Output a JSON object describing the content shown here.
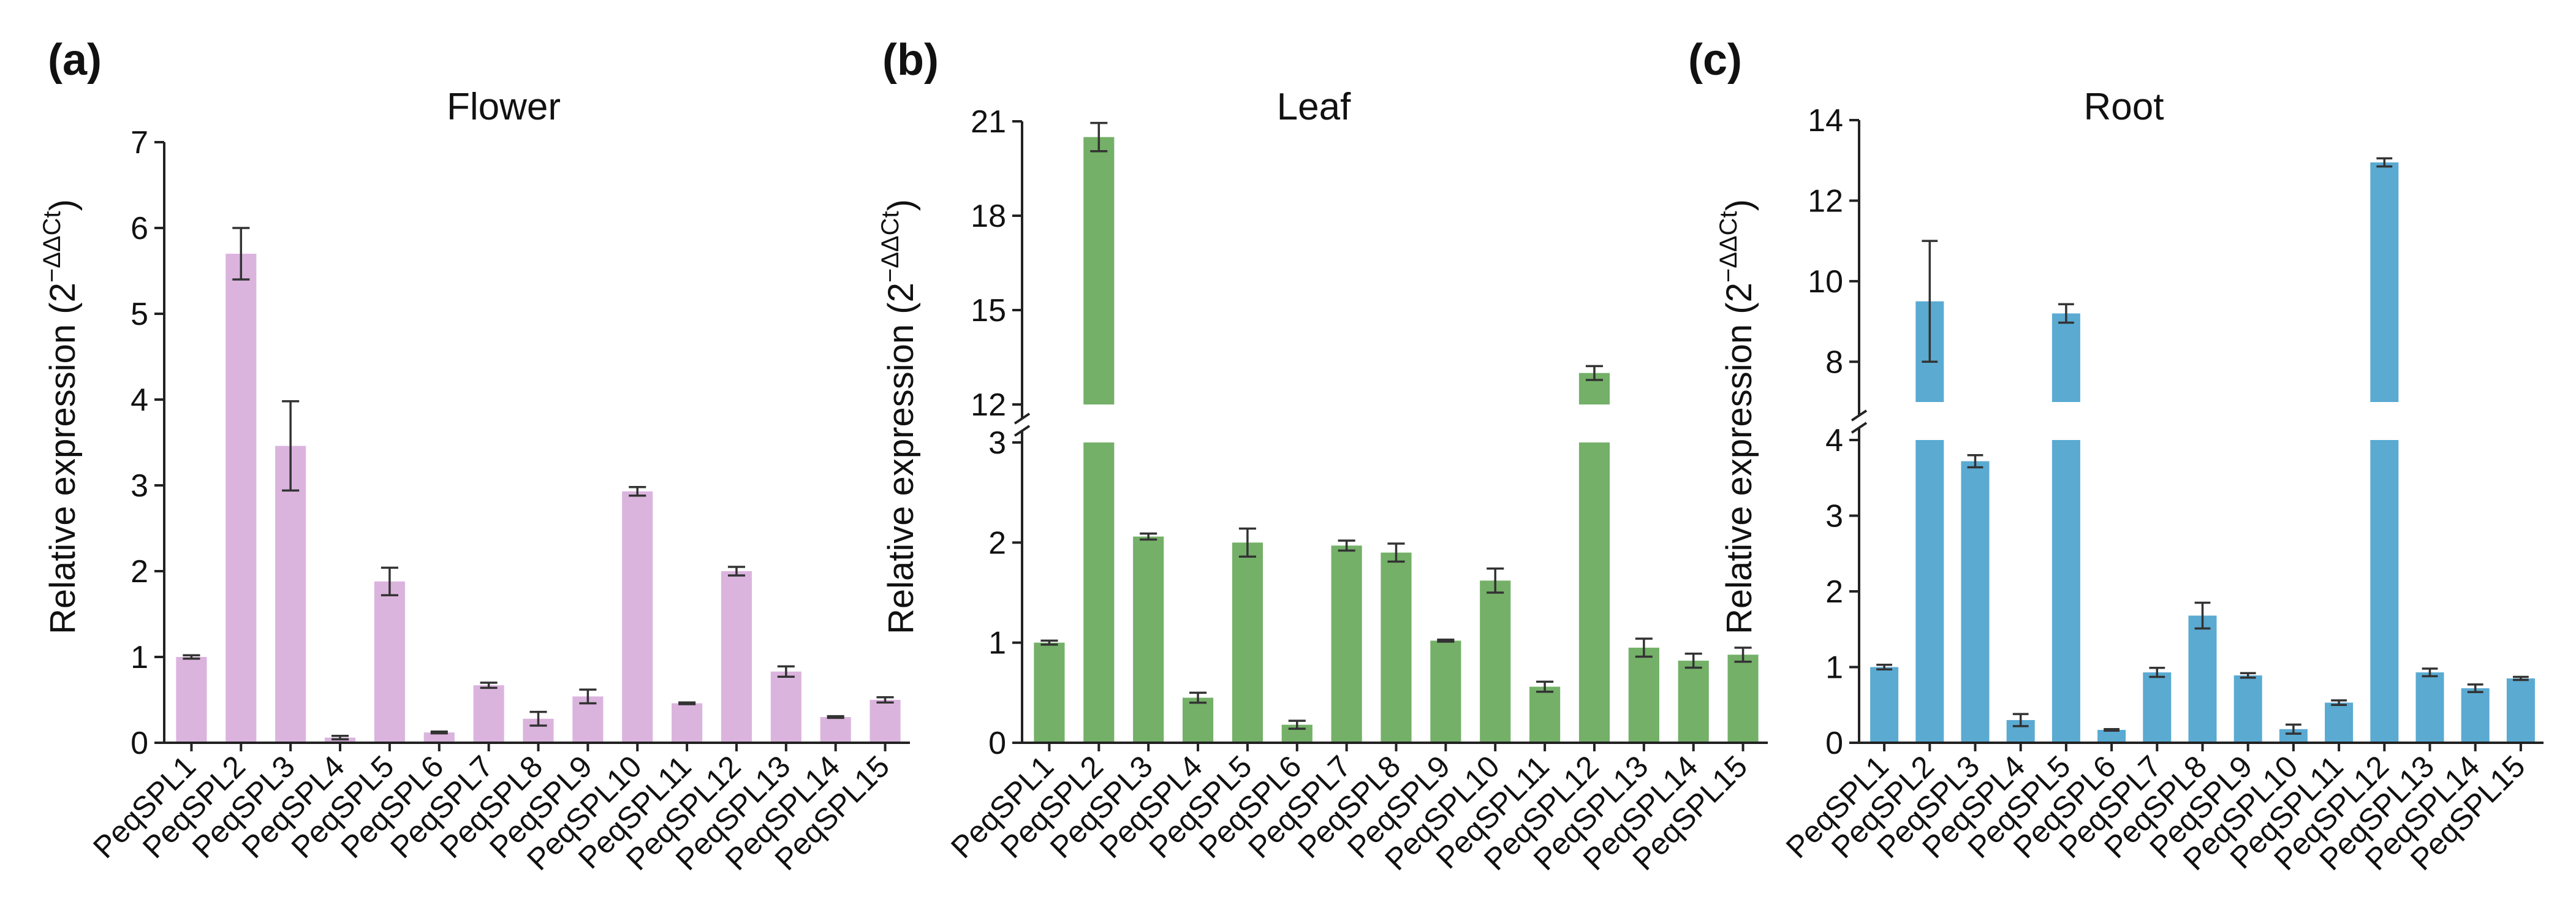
{
  "figure": {
    "panels": [
      {
        "letter": "(a)",
        "title": "Flower",
        "ylabel_prefix": "Relative expression (2",
        "ylabel_sup": "−ΔΔCt",
        "ylabel_suffix": ")"
      },
      {
        "letter": "(b)",
        "title": "Leaf",
        "ylabel_prefix": "Relative expression (2",
        "ylabel_sup": "−ΔΔCt",
        "ylabel_suffix": ")"
      },
      {
        "letter": "(c)",
        "title": "Root",
        "ylabel_prefix": "Relative expression (2",
        "ylabel_sup": "−ΔΔCt",
        "ylabel_suffix": ")"
      }
    ]
  },
  "chart_data": [
    {
      "type": "bar",
      "title": "Flower",
      "panel_label": "(a)",
      "ylabel": "Relative expression (2^−ΔΔCt)",
      "xlabel": "",
      "color": "#dbb4de",
      "categories": [
        "PeqSPL1",
        "PeqSPL2",
        "PeqSPL3",
        "PeqSPL4",
        "PeqSPL5",
        "PeqSPL6",
        "PeqSPL7",
        "PeqSPL8",
        "PeqSPL9",
        "PeqSPL10",
        "PeqSPL11",
        "PeqSPL12",
        "PeqSPL13",
        "PeqSPL14",
        "PeqSPL15"
      ],
      "values": [
        1.0,
        5.7,
        3.46,
        0.06,
        1.88,
        0.12,
        0.67,
        0.28,
        0.54,
        2.93,
        0.46,
        2.0,
        0.83,
        0.3,
        0.5
      ],
      "errors": [
        0.02,
        0.3,
        0.52,
        0.02,
        0.16,
        0.01,
        0.03,
        0.08,
        0.08,
        0.05,
        0.01,
        0.05,
        0.06,
        0.01,
        0.03
      ],
      "ylim": [
        0,
        7
      ],
      "yticks": [
        0,
        1,
        2,
        3,
        4,
        5,
        6,
        7
      ],
      "ytick_labels": [
        "0",
        "1",
        "2",
        "3",
        "4",
        "5",
        "6",
        "7"
      ],
      "broken_axis": false
    },
    {
      "type": "bar",
      "title": "Leaf",
      "panel_label": "(b)",
      "ylabel": "Relative expression (2^−ΔΔCt)",
      "xlabel": "",
      "color": "#74b068",
      "categories": [
        "PeqSPL1",
        "PeqSPL2",
        "PeqSPL3",
        "PeqSPL4",
        "PeqSPL5",
        "PeqSPL6",
        "PeqSPL7",
        "PeqSPL8",
        "PeqSPL9",
        "PeqSPL10",
        "PeqSPL11",
        "PeqSPL12",
        "PeqSPL13",
        "PeqSPL14",
        "PeqSPL15"
      ],
      "values": [
        1.0,
        20.5,
        2.06,
        0.45,
        2.0,
        0.18,
        1.97,
        1.9,
        1.02,
        1.62,
        0.56,
        13.0,
        0.95,
        0.82,
        0.88
      ],
      "errors": [
        0.02,
        0.45,
        0.03,
        0.05,
        0.14,
        0.04,
        0.05,
        0.09,
        0.01,
        0.12,
        0.05,
        0.22,
        0.09,
        0.07,
        0.07
      ],
      "ylim": [
        0,
        21
      ],
      "broken_axis": true,
      "lower_range": [
        0,
        3
      ],
      "upper_range": [
        12,
        21
      ],
      "lower_ticks": [
        0,
        1,
        2,
        3
      ],
      "lower_tick_labels": [
        "0",
        "1",
        "2",
        "3"
      ],
      "upper_ticks": [
        12,
        15,
        18,
        21
      ],
      "upper_tick_labels": [
        "12",
        "15",
        "18",
        "21"
      ]
    },
    {
      "type": "bar",
      "title": "Root",
      "panel_label": "(c)",
      "ylabel": "Relative expression (2^−ΔΔCt)",
      "xlabel": "",
      "color": "#5aaad2",
      "categories": [
        "PeqSPL1",
        "PeqSPL2",
        "PeqSPL3",
        "PeqSPL4",
        "PeqSPL5",
        "PeqSPL6",
        "PeqSPL7",
        "PeqSPL8",
        "PeqSPL9",
        "PeqSPL10",
        "PeqSPL11",
        "PeqSPL12",
        "PeqSPL13",
        "PeqSPL14",
        "PeqSPL15"
      ],
      "values": [
        1.0,
        9.5,
        3.72,
        0.3,
        9.2,
        0.17,
        0.93,
        1.68,
        0.89,
        0.18,
        0.53,
        12.95,
        0.93,
        0.72,
        0.85
      ],
      "errors": [
        0.03,
        1.5,
        0.08,
        0.08,
        0.23,
        0.01,
        0.06,
        0.17,
        0.03,
        0.06,
        0.03,
        0.1,
        0.05,
        0.05,
        0.02
      ],
      "ylim": [
        0,
        14
      ],
      "broken_axis": true,
      "lower_range": [
        0,
        4
      ],
      "upper_range": [
        7,
        14
      ],
      "lower_ticks": [
        0,
        1,
        2,
        3,
        4
      ],
      "lower_tick_labels": [
        "0",
        "1",
        "2",
        "3",
        "4"
      ],
      "upper_ticks": [
        8,
        10,
        12,
        14
      ],
      "upper_tick_labels": [
        "8",
        "10",
        "12",
        "14"
      ]
    }
  ]
}
